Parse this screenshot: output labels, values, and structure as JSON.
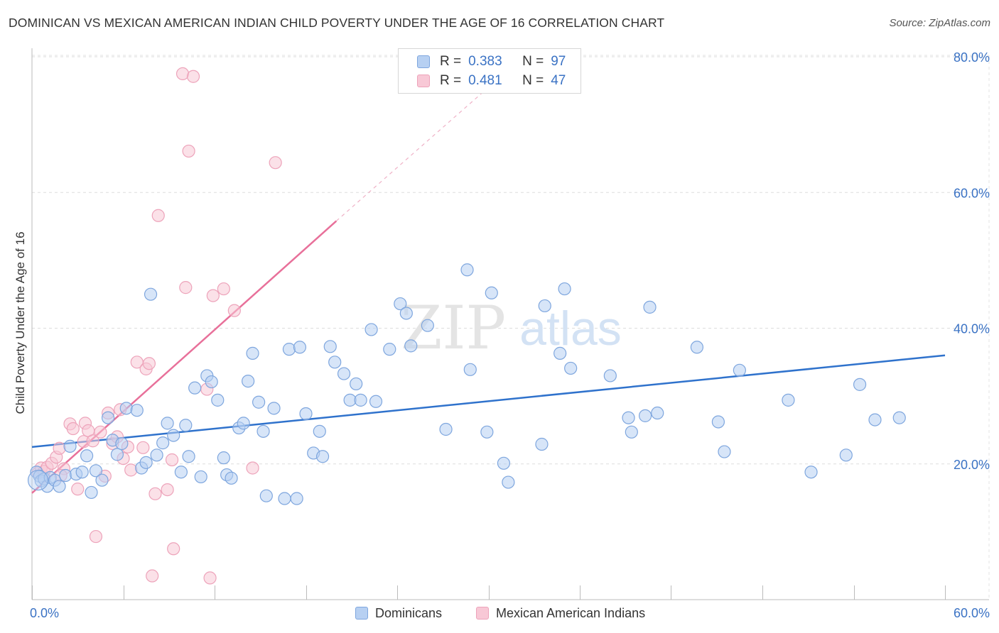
{
  "header": {
    "title": "DOMINICAN VS MEXICAN AMERICAN INDIAN CHILD POVERTY UNDER THE AGE OF 16 CORRELATION CHART",
    "source": "Source: ZipAtlas.com"
  },
  "watermark": {
    "zip": "ZIP",
    "atlas": "atlas"
  },
  "legend": {
    "r_label": "R =",
    "n_label": "N =",
    "entries": [
      {
        "name": "Dominicans",
        "r": "0.383",
        "n": "97",
        "fill": "#b7d0f2",
        "stroke": "#7ea6de"
      },
      {
        "name": "Mexican American Indians",
        "r": "0.481",
        "n": "47",
        "fill": "#f8c8d6",
        "stroke": "#eda3ba"
      }
    ]
  },
  "chart_data": {
    "type": "scatter",
    "title": "DOMINICAN VS MEXICAN AMERICAN INDIAN CHILD POVERTY UNDER THE AGE OF 16 CORRELATION CHART",
    "xlabel": "",
    "ylabel": "Child Poverty Under the Age of 16",
    "xlim": [
      0,
      60
    ],
    "ylim": [
      0,
      80
    ],
    "x_tick_labels": [
      "0.0%",
      "60.0%"
    ],
    "y_ticks": [
      20,
      40,
      60,
      80
    ],
    "y_tick_labels": [
      "20.0%",
      "40.0%",
      "60.0%",
      "80.0%"
    ],
    "grid": true,
    "colors": {
      "blue_fill": "#b7d0f2",
      "blue_stroke": "#7ea6de",
      "blue_line": "#2f72cc",
      "pink_fill": "#f8c8d6",
      "pink_stroke": "#eda3ba",
      "pink_line": "#e8709a",
      "axis_text": "#3a72c4"
    },
    "series": [
      {
        "name": "Dominicans",
        "r": 0.383,
        "n": 97,
        "trend": {
          "x0": 0,
          "y0": 22.5,
          "x1": 60,
          "y1": 36.0
        },
        "points": [
          [
            0.3,
            18.8
          ],
          [
            0.5,
            18.2
          ],
          [
            0.6,
            17.5
          ],
          [
            0.8,
            17.8
          ],
          [
            1.0,
            16.7
          ],
          [
            1.2,
            18.0
          ],
          [
            1.5,
            17.6
          ],
          [
            1.8,
            16.7
          ],
          [
            2.2,
            18.3
          ],
          [
            2.5,
            22.6
          ],
          [
            2.9,
            18.5
          ],
          [
            3.3,
            18.8
          ],
          [
            3.6,
            21.2
          ],
          [
            3.9,
            15.8
          ],
          [
            4.2,
            19.0
          ],
          [
            4.6,
            17.6
          ],
          [
            5.0,
            26.8
          ],
          [
            5.3,
            23.5
          ],
          [
            5.6,
            21.4
          ],
          [
            5.9,
            23.0
          ],
          [
            6.2,
            28.2
          ],
          [
            6.9,
            27.9
          ],
          [
            7.2,
            19.4
          ],
          [
            7.5,
            20.2
          ],
          [
            7.8,
            45.0
          ],
          [
            8.2,
            21.3
          ],
          [
            8.6,
            23.1
          ],
          [
            8.9,
            26.0
          ],
          [
            9.3,
            24.2
          ],
          [
            9.8,
            18.8
          ],
          [
            10.1,
            25.7
          ],
          [
            10.3,
            21.1
          ],
          [
            10.7,
            31.2
          ],
          [
            11.1,
            18.1
          ],
          [
            11.5,
            33.0
          ],
          [
            11.8,
            32.1
          ],
          [
            12.2,
            29.4
          ],
          [
            12.6,
            20.9
          ],
          [
            12.8,
            18.4
          ],
          [
            13.1,
            17.9
          ],
          [
            13.6,
            25.3
          ],
          [
            13.9,
            26.0
          ],
          [
            14.2,
            32.2
          ],
          [
            14.5,
            36.3
          ],
          [
            14.9,
            29.1
          ],
          [
            15.2,
            24.8
          ],
          [
            15.4,
            15.3
          ],
          [
            15.9,
            28.2
          ],
          [
            16.6,
            14.9
          ],
          [
            16.9,
            36.9
          ],
          [
            17.4,
            14.9
          ],
          [
            17.6,
            37.2
          ],
          [
            18.0,
            27.4
          ],
          [
            18.5,
            21.6
          ],
          [
            18.9,
            24.8
          ],
          [
            19.1,
            21.1
          ],
          [
            19.6,
            37.3
          ],
          [
            19.9,
            35.0
          ],
          [
            20.5,
            33.3
          ],
          [
            20.9,
            29.4
          ],
          [
            21.3,
            31.8
          ],
          [
            21.6,
            29.4
          ],
          [
            22.3,
            39.8
          ],
          [
            22.6,
            29.2
          ],
          [
            23.5,
            36.9
          ],
          [
            24.2,
            43.6
          ],
          [
            24.6,
            42.2
          ],
          [
            24.9,
            37.4
          ],
          [
            26.0,
            40.4
          ],
          [
            27.2,
            25.1
          ],
          [
            28.6,
            48.6
          ],
          [
            28.8,
            33.9
          ],
          [
            29.9,
            24.7
          ],
          [
            30.2,
            45.2
          ],
          [
            31.0,
            20.1
          ],
          [
            31.3,
            17.3
          ],
          [
            33.5,
            22.9
          ],
          [
            33.7,
            43.3
          ],
          [
            34.7,
            36.3
          ],
          [
            35.0,
            45.8
          ],
          [
            35.4,
            34.1
          ],
          [
            38.0,
            33.0
          ],
          [
            39.2,
            26.8
          ],
          [
            39.4,
            24.7
          ],
          [
            40.3,
            27.1
          ],
          [
            40.6,
            43.1
          ],
          [
            41.1,
            27.5
          ],
          [
            43.7,
            37.2
          ],
          [
            45.1,
            26.2
          ],
          [
            45.5,
            21.8
          ],
          [
            46.5,
            33.8
          ],
          [
            49.7,
            29.4
          ],
          [
            51.2,
            18.8
          ],
          [
            53.5,
            21.3
          ],
          [
            54.4,
            31.7
          ],
          [
            55.4,
            26.5
          ],
          [
            57.0,
            26.8
          ]
        ]
      },
      {
        "name": "Mexican American Indians",
        "r": 0.481,
        "n": 47,
        "trend": {
          "x0": 0,
          "y0": 15.7,
          "x1": 20.0,
          "y1": 55.8
        },
        "trend_extension": {
          "x1": 30.0,
          "y1": 75.5
        },
        "points": [
          [
            0.4,
            18.7
          ],
          [
            0.6,
            19.4
          ],
          [
            0.8,
            18.9
          ],
          [
            1.0,
            19.5
          ],
          [
            1.3,
            20.1
          ],
          [
            1.6,
            21.0
          ],
          [
            1.8,
            22.3
          ],
          [
            2.1,
            19.3
          ],
          [
            2.5,
            25.9
          ],
          [
            2.7,
            25.2
          ],
          [
            3.0,
            16.3
          ],
          [
            3.4,
            23.3
          ],
          [
            3.5,
            26.0
          ],
          [
            3.7,
            24.9
          ],
          [
            4.0,
            23.4
          ],
          [
            4.2,
            9.3
          ],
          [
            4.5,
            24.7
          ],
          [
            4.8,
            18.2
          ],
          [
            5.0,
            27.5
          ],
          [
            5.3,
            23.0
          ],
          [
            5.6,
            24.0
          ],
          [
            5.8,
            28.0
          ],
          [
            6.0,
            20.8
          ],
          [
            6.3,
            22.5
          ],
          [
            6.5,
            19.1
          ],
          [
            6.9,
            35.0
          ],
          [
            7.3,
            22.4
          ],
          [
            7.5,
            34.0
          ],
          [
            7.7,
            34.8
          ],
          [
            7.9,
            3.5
          ],
          [
            8.1,
            15.6
          ],
          [
            8.3,
            56.6
          ],
          [
            8.9,
            16.2
          ],
          [
            9.2,
            20.6
          ],
          [
            9.3,
            7.5
          ],
          [
            9.9,
            77.5
          ],
          [
            10.1,
            46.0
          ],
          [
            10.3,
            66.1
          ],
          [
            10.6,
            77.1
          ],
          [
            11.5,
            31.0
          ],
          [
            11.7,
            3.2
          ],
          [
            11.9,
            44.8
          ],
          [
            12.6,
            45.8
          ],
          [
            13.3,
            42.6
          ],
          [
            14.5,
            19.4
          ],
          [
            16.0,
            64.4
          ],
          [
            1.9,
            18.3
          ]
        ]
      }
    ]
  }
}
